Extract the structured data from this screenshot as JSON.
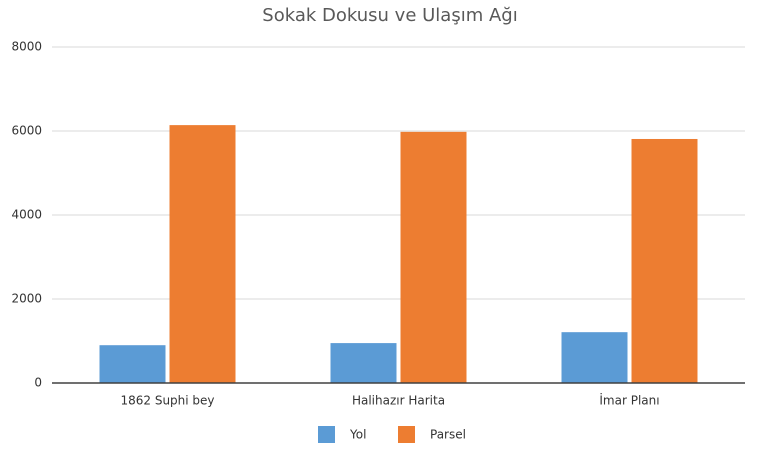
{
  "chart_data": {
    "type": "bar",
    "title": "Sokak Dokusu ve Ulaşım Ağı",
    "categories": [
      "1862 Suphi bey",
      "Halihazır Harita",
      "İmar Planı"
    ],
    "series": [
      {
        "name": "Yol",
        "color": "#5b9bd5",
        "values": [
          900,
          950,
          1210
        ]
      },
      {
        "name": "Parsel",
        "color": "#ed7d31",
        "values": [
          6140,
          5980,
          5810
        ]
      }
    ],
    "ylim": [
      0,
      8000
    ],
    "yticks": [
      0,
      2000,
      4000,
      6000,
      8000
    ],
    "grid": true,
    "legend": "bottom"
  }
}
